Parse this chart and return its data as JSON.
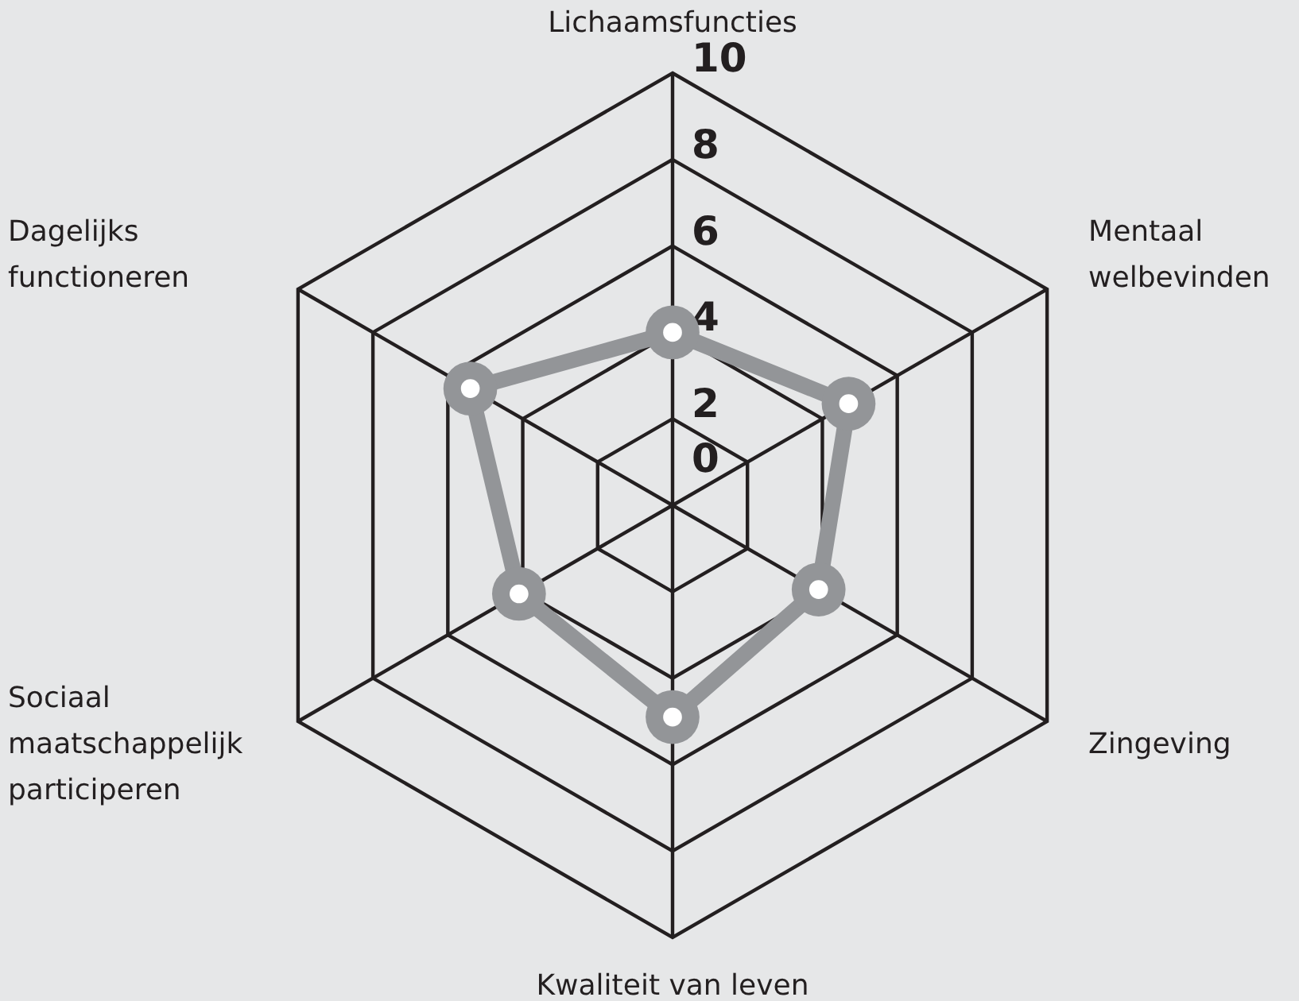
{
  "chart_data": {
    "type": "radar",
    "categories": [
      "Lichaamsfuncties",
      "Mentaal welbevinden",
      "Zingeving",
      "Kwaliteit van leven",
      "Sociaal maatschappelijk participeren",
      "Dagelijks functioneren"
    ],
    "series": [
      {
        "color": "#939598",
        "values": [
          4.0,
          4.7,
          3.9,
          4.9,
          4.1,
          5.4
        ]
      }
    ],
    "ylim": [
      0,
      10
    ],
    "yticks": [
      0,
      2,
      4,
      6,
      8,
      10
    ],
    "marker": "circle",
    "grid": true
  }
}
